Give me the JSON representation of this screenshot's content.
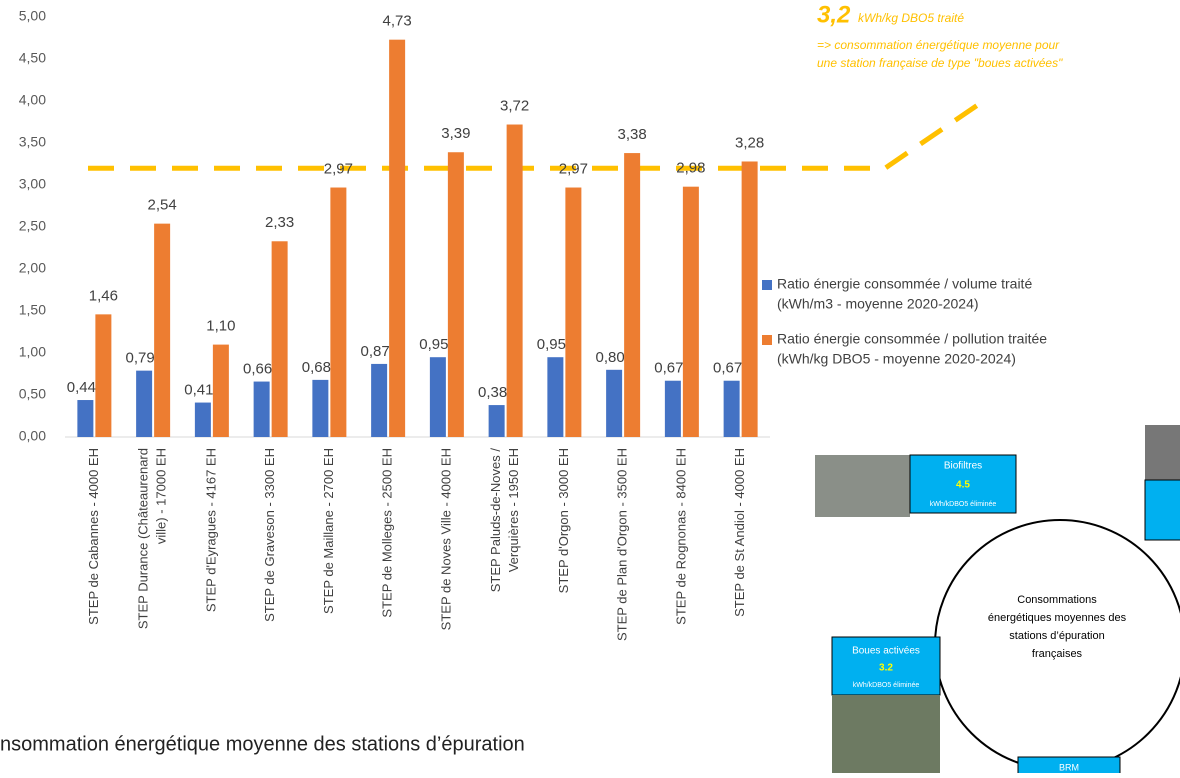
{
  "chart_data": {
    "type": "bar",
    "categories": [
      [
        "STEP de Cabannes - 4000 EH"
      ],
      [
        "STEP Durance (Châteaurenard",
        "ville) - 17000 EH"
      ],
      [
        "STEP d'Eyragues - 4167 EH"
      ],
      [
        "STEP de Graveson - 3300 EH"
      ],
      [
        "STEP de Maillane - 2700 EH"
      ],
      [
        "STEP de Molleges - 2500 EH"
      ],
      [
        "STEP de Noves Ville - 4000 EH"
      ],
      [
        "STEP Paluds-de-Noves /",
        "Verquières - 1950 EH"
      ],
      [
        "STEP d'Orgon - 3000 EH"
      ],
      [
        "STEP de Plan d'Orgon - 3500 EH"
      ],
      [
        "STEP de Rognonas - 8400 EH"
      ],
      [
        "STEP de St Andiol - 4000 EH"
      ]
    ],
    "series": [
      {
        "name": [
          "Ratio énergie consommée / volume traité",
          "(kWh/m3 - moyenne 2020-2024)"
        ],
        "color": "#4472c4",
        "values": [
          0.44,
          0.79,
          0.41,
          0.66,
          0.68,
          0.87,
          0.95,
          0.38,
          0.95,
          0.8,
          0.67,
          0.67
        ],
        "value_labels": [
          "0,44",
          "0,79",
          "0,41",
          "0,66",
          "0,68",
          "0,87",
          "0,95",
          "0,38",
          "0,95",
          "0,80",
          "0,67",
          "0,67"
        ]
      },
      {
        "name": [
          "Ratio énergie consommée / pollution traitée",
          "(kWh/kg DBO5 - moyenne 2020-2024)"
        ],
        "color": "#ed7d31",
        "values": [
          1.46,
          2.54,
          1.1,
          2.33,
          2.97,
          4.73,
          3.39,
          3.72,
          2.97,
          3.38,
          2.98,
          3.28
        ],
        "value_labels": [
          "1,46",
          "2,54",
          "1,10",
          "2,33",
          "2,97",
          "4,73",
          "3,39",
          "3,72",
          "2,97",
          "3,38",
          "2,98",
          "3,28"
        ]
      }
    ],
    "ylim": [
      0,
      5
    ],
    "yticks": [
      {
        "value": 0,
        "label": "0,00"
      },
      {
        "value": 0.5,
        "label": "0,50"
      },
      {
        "value": 1,
        "label": "1,00"
      },
      {
        "value": 1.5,
        "label": "1,50"
      },
      {
        "value": 2,
        "label": "2,00"
      },
      {
        "value": 2.5,
        "label": "2,50"
      },
      {
        "value": 3,
        "label": "3,00"
      },
      {
        "value": 3.5,
        "label": "3,50"
      },
      {
        "value": 4,
        "label": "4,00"
      },
      {
        "value": 4.5,
        "label": "4,50"
      },
      {
        "value": 5,
        "label": "5,00"
      }
    ],
    "grid": false,
    "reference_line": {
      "value": 3.2,
      "label": "3,2",
      "color": "#ffc000",
      "unit": "kWh/kg DBO5 traité",
      "note": [
        "=> consommation énergétique moyenne pour",
        "une station française de type \"boues activées\""
      ]
    }
  },
  "caption": "nsommation énergétique moyenne des stations d’épuration",
  "inset": {
    "center": [
      "Consommations",
      "énergétiques moyennes des",
      "stations d’épuration",
      "françaises"
    ],
    "boxes": [
      {
        "title": "Biofiltres",
        "value": "4.5",
        "unit": "kWh/kDBO5 éliminée"
      },
      {
        "title": "Boues activées",
        "value": "3.2",
        "unit": "kWh/kDBO5 éliminée"
      },
      {
        "title": "BRM"
      }
    ]
  }
}
